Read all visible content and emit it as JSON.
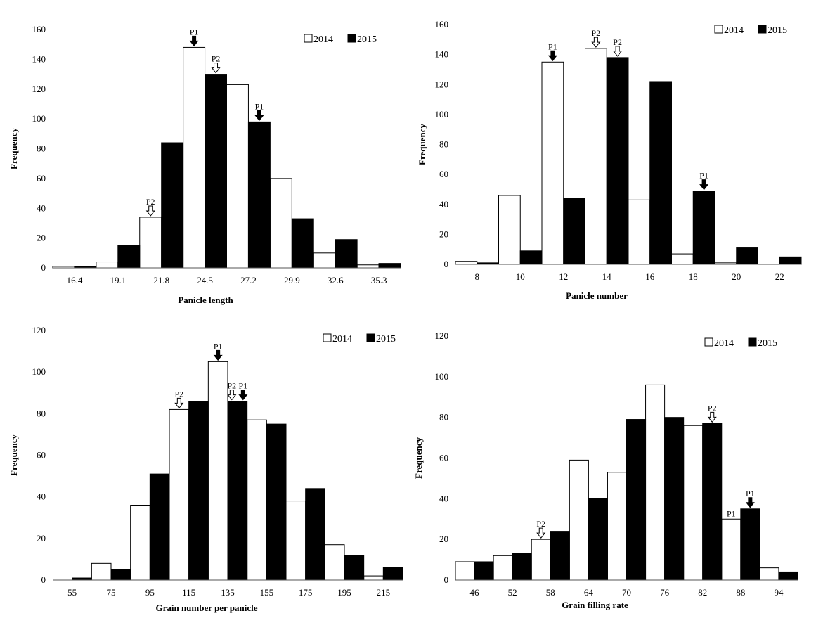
{
  "legend": {
    "white_label": "2014",
    "black_label": "2015"
  },
  "colors": {
    "y2014": "#ffffff",
    "y2015": "#000000",
    "outline": "#000000"
  },
  "chart_data": [
    {
      "type": "bar",
      "xlabel": "Panicle length",
      "ylabel": "Frequency",
      "ylim": [
        0,
        160
      ],
      "yticks": [
        0,
        20,
        40,
        60,
        80,
        100,
        120,
        140,
        160
      ],
      "categories": [
        "16.4",
        "19.1",
        "21.8",
        "24.5",
        "27.2",
        "29.9",
        "32.6",
        "35.3"
      ],
      "series": [
        {
          "name": "2014",
          "values": [
            1,
            4,
            34,
            148,
            123,
            60,
            10,
            2
          ]
        },
        {
          "name": "2015",
          "values": [
            1,
            15,
            84,
            130,
            98,
            33,
            19,
            3
          ]
        }
      ],
      "annotations": [
        {
          "text": "P2",
          "category": 2,
          "series": 0,
          "arrow": "hollow"
        },
        {
          "text": "P1",
          "category": 3,
          "series": 0,
          "arrow": "filled"
        },
        {
          "text": "P2",
          "category": 3,
          "series": 1,
          "arrow": "hollow"
        },
        {
          "text": "P1",
          "category": 4,
          "series": 1,
          "arrow": "filled"
        }
      ],
      "legend_position": "top-right"
    },
    {
      "type": "bar",
      "xlabel": "Panicle number",
      "ylabel": "Frequency",
      "ylim": [
        0,
        160
      ],
      "yticks": [
        0,
        20,
        40,
        60,
        80,
        100,
        120,
        140,
        160
      ],
      "categories": [
        "8",
        "10",
        "12",
        "14",
        "16",
        "18",
        "20",
        "22"
      ],
      "series": [
        {
          "name": "2014",
          "values": [
            2,
            46,
            135,
            144,
            43,
            7,
            1,
            0
          ]
        },
        {
          "name": "2015",
          "values": [
            1,
            9,
            44,
            138,
            122,
            49,
            11,
            5
          ]
        }
      ],
      "annotations": [
        {
          "text": "P1",
          "category": 2,
          "series": 0,
          "arrow": "filled"
        },
        {
          "text": "P2",
          "category": 3,
          "series": 0,
          "arrow": "hollow"
        },
        {
          "text": "P2",
          "category": 3,
          "series": 1,
          "arrow": "hollow"
        },
        {
          "text": "P1",
          "category": 5,
          "series": 1,
          "arrow": "filled"
        }
      ],
      "legend_position": "top-right"
    },
    {
      "type": "bar",
      "xlabel": "Grain number per panicle",
      "ylabel": "Frequency",
      "ylim": [
        0,
        120
      ],
      "yticks": [
        0,
        20,
        40,
        60,
        80,
        100,
        120
      ],
      "categories": [
        "55",
        "75",
        "95",
        "115",
        "135",
        "155",
        "175",
        "195",
        "215"
      ],
      "series": [
        {
          "name": "2014",
          "values": [
            0,
            8,
            36,
            82,
            105,
            77,
            38,
            17,
            2
          ]
        },
        {
          "name": "2015",
          "values": [
            1,
            5,
            51,
            86,
            86,
            75,
            44,
            12,
            6
          ]
        }
      ],
      "annotations": [
        {
          "text": "P2",
          "category": 3,
          "series": 0,
          "arrow": "hollow"
        },
        {
          "text": "P1",
          "category": 4,
          "series": 0,
          "arrow": "filled"
        },
        {
          "text": "P2",
          "category": 4,
          "series": 1,
          "arrow": "hollow",
          "offset": -8
        },
        {
          "text": "P1",
          "category": 4,
          "series": 1,
          "arrow": "filled",
          "offset": 8
        }
      ],
      "legend_position": "top-right"
    },
    {
      "type": "bar",
      "xlabel": "Grain filling rate",
      "ylabel": "Frequency",
      "ylim": [
        0,
        120
      ],
      "yticks": [
        0,
        20,
        40,
        60,
        80,
        100,
        120
      ],
      "categories": [
        "46",
        "52",
        "58",
        "64",
        "70",
        "76",
        "82",
        "88",
        "94"
      ],
      "series": [
        {
          "name": "2014",
          "values": [
            9,
            12,
            20,
            59,
            53,
            96,
            76,
            30,
            6
          ]
        },
        {
          "name": "2015",
          "values": [
            9,
            13,
            24,
            40,
            79,
            80,
            77,
            35,
            4
          ]
        }
      ],
      "annotations": [
        {
          "text": "P2",
          "category": 2,
          "series": 0,
          "arrow": "hollow"
        },
        {
          "text": "P2",
          "category": 6,
          "series": 1,
          "arrow": "hollow"
        },
        {
          "text": "P1",
          "category": 7,
          "series": 0,
          "arrow": "none"
        },
        {
          "text": "P1",
          "category": 7,
          "series": 1,
          "arrow": "filled"
        }
      ],
      "legend_position": "top-right"
    }
  ]
}
